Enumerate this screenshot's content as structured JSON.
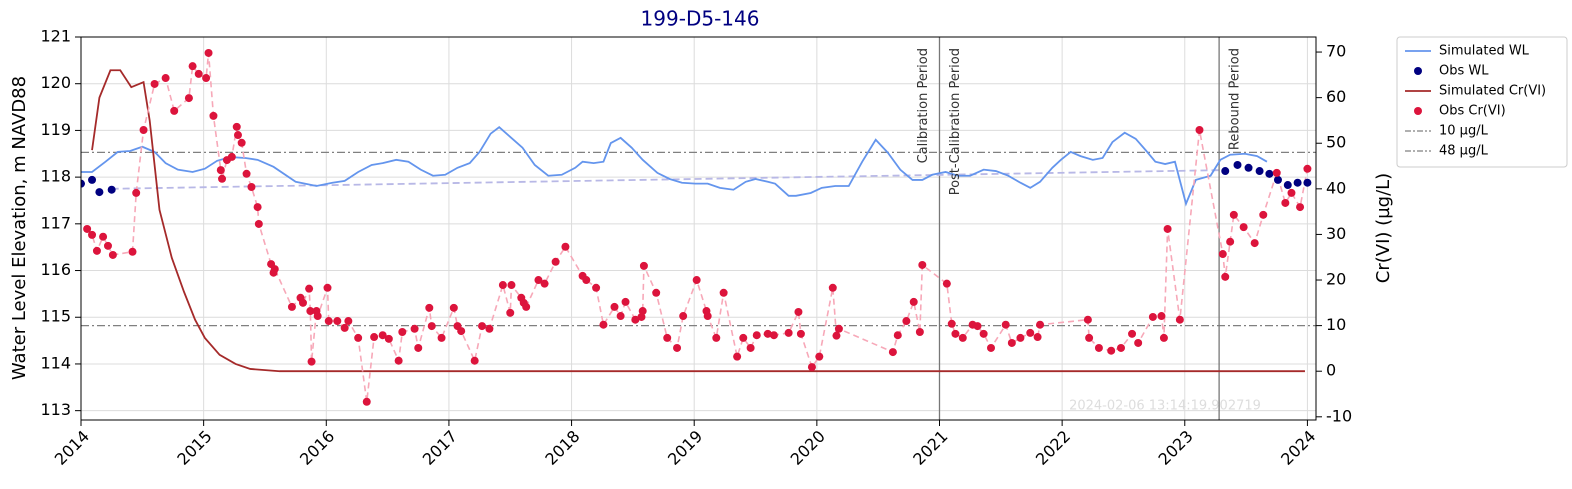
{
  "chart_data": {
    "type": "line",
    "title": "199-D5-146",
    "ylabel": "Water Level Elevation, m NAVD88",
    "y2label": "Cr(VI) (µg/L)",
    "xlim": [
      2014,
      2024.07
    ],
    "xticks": [
      2014,
      2015,
      2016,
      2017,
      2018,
      2019,
      2020,
      2021,
      2022,
      2023,
      2024
    ],
    "ylim": [
      112.8,
      121
    ],
    "yticks": [
      113,
      114,
      115,
      116,
      117,
      118,
      119,
      120,
      121
    ],
    "y2lim": [
      -10.7,
      73.3
    ],
    "y2ticks": [
      -10,
      0,
      10,
      20,
      30,
      40,
      50,
      60,
      70
    ],
    "grid": true,
    "legend_loc": "outside upper right",
    "series": [
      {
        "name": "Simulated WL",
        "kind": "line",
        "color": "#6495ed",
        "x": [
          2014.0,
          2014.09,
          2014.2,
          2014.3,
          2014.4,
          2014.5,
          2014.6,
          2014.69,
          2014.79,
          2014.91,
          2015.01,
          2015.11,
          2015.22,
          2015.34,
          2015.44,
          2015.57,
          2015.75,
          2015.92,
          2016.05,
          2016.15,
          2016.26,
          2016.37,
          2016.46,
          2016.57,
          2016.67,
          2016.77,
          2016.87,
          2016.97,
          2017.07,
          2017.17,
          2017.25,
          2017.34,
          2017.41,
          2017.5,
          2017.6,
          2017.7,
          2017.81,
          2017.92,
          2018.03,
          2018.09,
          2018.18,
          2018.26,
          2018.32,
          2018.4,
          2018.49,
          2018.58,
          2018.7,
          2018.8,
          2018.9,
          2019.01,
          2019.11,
          2019.21,
          2019.32,
          2019.42,
          2019.5,
          2019.6,
          2019.66,
          2019.77,
          2019.83,
          2019.95,
          2020.04,
          2020.15,
          2020.26,
          2020.37,
          2020.48,
          2020.58,
          2020.68,
          2020.78,
          2020.86,
          2020.94,
          2021.05,
          2021.15,
          2021.25,
          2021.36,
          2021.46,
          2021.56,
          2021.66,
          2021.74,
          2021.82,
          2021.92,
          2021.99,
          2022.07,
          2022.15,
          2022.25,
          2022.33,
          2022.41,
          2022.51,
          2022.6,
          2022.68,
          2022.76,
          2022.84,
          2022.92,
          2023.01,
          2023.09,
          2023.21,
          2023.29,
          2023.37,
          2023.49,
          2023.59,
          2023.67
        ],
        "values": [
          118.11,
          118.11,
          118.33,
          118.54,
          118.56,
          118.65,
          118.54,
          118.3,
          118.16,
          118.11,
          118.18,
          118.35,
          118.43,
          118.41,
          118.37,
          118.22,
          117.9,
          117.81,
          117.88,
          117.92,
          118.11,
          118.26,
          118.3,
          118.37,
          118.33,
          118.16,
          118.03,
          118.05,
          118.2,
          118.3,
          118.54,
          118.93,
          119.07,
          118.86,
          118.63,
          118.26,
          118.03,
          118.05,
          118.2,
          118.33,
          118.3,
          118.33,
          118.73,
          118.84,
          118.63,
          118.37,
          118.09,
          117.96,
          117.88,
          117.86,
          117.86,
          117.77,
          117.73,
          117.9,
          117.96,
          117.9,
          117.86,
          117.6,
          117.6,
          117.66,
          117.77,
          117.81,
          117.81,
          118.33,
          118.8,
          118.52,
          118.16,
          117.94,
          117.94,
          118.05,
          118.11,
          118.03,
          118.03,
          118.16,
          118.13,
          118.03,
          117.88,
          117.77,
          117.9,
          118.2,
          118.37,
          118.54,
          118.45,
          118.37,
          118.41,
          118.75,
          118.95,
          118.82,
          118.58,
          118.33,
          118.28,
          118.33,
          117.43,
          117.94,
          118.03,
          118.37,
          118.48,
          118.5,
          118.45,
          118.33
        ]
      },
      {
        "name": "Obs WL",
        "kind": "scatter",
        "color": "#000080",
        "x": [
          2014.0,
          2014.09,
          2014.15,
          2014.25,
          2023.33,
          2023.43,
          2023.52,
          2023.61,
          2023.69,
          2023.76,
          2023.84,
          2023.92,
          2024.0
        ],
        "values": [
          117.86,
          117.94,
          117.68,
          117.73,
          118.13,
          118.26,
          118.2,
          118.13,
          118.07,
          117.94,
          117.83,
          117.88,
          117.88
        ]
      },
      {
        "name": "Simulated Cr(VI)",
        "kind": "line",
        "color": "#a52a2a",
        "axis": "y2",
        "x": [
          2014.09,
          2014.15,
          2014.24,
          2014.32,
          2014.41,
          2014.51,
          2014.56,
          2014.64,
          2014.74,
          2014.84,
          2014.93,
          2015.01,
          2015.13,
          2015.26,
          2015.38,
          2015.62,
          2023.98
        ],
        "values": [
          48.5,
          60,
          66,
          66,
          62.3,
          63.4,
          55,
          35.4,
          24.9,
          17.4,
          11.3,
          7.3,
          3.6,
          1.6,
          0.5,
          0,
          0
        ]
      },
      {
        "name": "Obs Cr(VI)",
        "kind": "scatter",
        "color": "#dc143c",
        "axis": "y2",
        "line_color": "#f7a8b8",
        "line_style": "dashed",
        "x": [
          2014.05,
          2014.09,
          2014.13,
          2014.18,
          2014.22,
          2014.26,
          2014.42,
          2014.45,
          2014.51,
          2014.6,
          2014.69,
          2014.76,
          2014.88,
          2014.91,
          2014.96,
          2015.02,
          2015.04,
          2015.08,
          2015.14,
          2015.15,
          2015.19,
          2015.23,
          2015.27,
          2015.28,
          2015.31,
          2015.35,
          2015.39,
          2015.44,
          2015.45,
          2015.55,
          2015.57,
          2015.58,
          2015.72,
          2015.79,
          2015.81,
          2015.86,
          2015.87,
          2015.88,
          2015.92,
          2015.93,
          2016.01,
          2016.02,
          2016.09,
          2016.15,
          2016.18,
          2016.26,
          2016.33,
          2016.39,
          2016.46,
          2016.51,
          2016.59,
          2016.62,
          2016.72,
          2016.75,
          2016.84,
          2016.86,
          2016.94,
          2017.04,
          2017.07,
          2017.1,
          2017.21,
          2017.27,
          2017.33,
          2017.44,
          2017.5,
          2017.51,
          2017.59,
          2017.61,
          2017.63,
          2017.73,
          2017.78,
          2017.87,
          2017.95,
          2018.09,
          2018.12,
          2018.2,
          2018.26,
          2018.35,
          2018.4,
          2018.44,
          2018.52,
          2018.57,
          2018.58,
          2018.59,
          2018.69,
          2018.78,
          2018.86,
          2018.91,
          2019.02,
          2019.1,
          2019.11,
          2019.18,
          2019.24,
          2019.35,
          2019.4,
          2019.46,
          2019.51,
          2019.6,
          2019.65,
          2019.77,
          2019.85,
          2019.87,
          2019.96,
          2020.02,
          2020.13,
          2020.16,
          2020.18,
          2020.62,
          2020.66,
          2020.73,
          2020.79,
          2020.84,
          2020.86,
          2021.06,
          2021.1,
          2021.13,
          2021.19,
          2021.27,
          2021.31,
          2021.36,
          2021.42,
          2021.54,
          2021.59,
          2021.66,
          2021.74,
          2021.8,
          2021.82,
          2022.21,
          2022.22,
          2022.3,
          2022.4,
          2022.48,
          2022.57,
          2022.62,
          2022.74,
          2022.81,
          2022.83,
          2022.86,
          2022.96,
          2023.12,
          2023.31,
          2023.33,
          2023.37,
          2023.4,
          2023.48,
          2023.57,
          2023.64,
          2023.75,
          2023.82,
          2023.87,
          2023.94,
          2024.0
        ],
        "values": [
          31.2,
          29.9,
          26.4,
          29.5,
          27.5,
          25.5,
          26.2,
          39.1,
          52.9,
          63.0,
          64.3,
          57.1,
          59.9,
          66.9,
          65.2,
          64.3,
          69.8,
          56.0,
          44.1,
          42.2,
          46.3,
          47.0,
          53.6,
          51.8,
          50.1,
          43.3,
          40.4,
          36.0,
          32.3,
          23.5,
          21.6,
          22.4,
          14.1,
          16.1,
          15.0,
          18.1,
          13.2,
          2.1,
          13.2,
          12.1,
          18.3,
          11.0,
          11.0,
          9.5,
          11.0,
          7.3,
          -6.7,
          7.5,
          7.9,
          7.1,
          2.3,
          8.6,
          9.3,
          5.1,
          13.9,
          9.9,
          7.3,
          13.9,
          9.9,
          8.8,
          2.3,
          9.9,
          9.3,
          18.9,
          12.8,
          18.9,
          16.1,
          15.0,
          14.1,
          20.0,
          19.2,
          24.0,
          27.3,
          20.9,
          20.0,
          18.3,
          10.2,
          14.1,
          12.1,
          15.2,
          11.3,
          11.9,
          13.2,
          23.1,
          17.2,
          7.3,
          5.1,
          12.1,
          20.0,
          13.2,
          12.1,
          7.3,
          17.2,
          3.2,
          7.3,
          5.1,
          7.9,
          8.2,
          7.9,
          8.4,
          13.0,
          8.2,
          0.9,
          3.2,
          18.3,
          7.8,
          9.3,
          4.2,
          7.9,
          11.0,
          15.2,
          8.6,
          23.3,
          19.2,
          10.4,
          8.2,
          7.3,
          10.2,
          9.9,
          8.2,
          5.1,
          10.2,
          6.2,
          7.3,
          8.4,
          7.5,
          10.2,
          11.3,
          7.3,
          5.1,
          4.5,
          5.1,
          8.2,
          6.2,
          11.9,
          12.1,
          7.3,
          31.2,
          11.3,
          52.9,
          25.7,
          20.7,
          28.4,
          34.3,
          31.6,
          28.1,
          34.3,
          43.5,
          36.9,
          39.1,
          36.0,
          44.4
        ]
      }
    ],
    "trend": {
      "color": "#b8b8e6",
      "x": [
        2014.25,
        2023.3
      ],
      "values": [
        117.75,
        118.15
      ]
    },
    "reference_lines": [
      {
        "name": "10 µg/L",
        "value": 10,
        "axis": "y2",
        "color": "#808080"
      },
      {
        "name": "48 µg/L",
        "value": 48,
        "axis": "y2",
        "color": "#808080"
      }
    ],
    "vlines": [
      2021.0,
      2023.28
    ],
    "annotations": [
      {
        "text": "Calibration Period",
        "x": 2021.0,
        "side": "left"
      },
      {
        "text": "Post-Calibration Period",
        "x": 2021.0,
        "side": "right"
      },
      {
        "text": "Rebound Period",
        "x": 2023.28,
        "side": "right"
      }
    ],
    "watermark": "2024-02-06 13:14:19.902719"
  }
}
